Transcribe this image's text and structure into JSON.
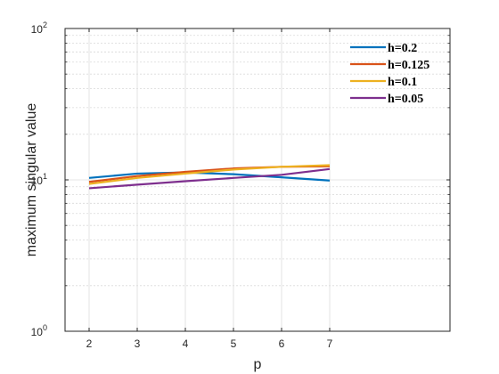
{
  "chart_data": {
    "type": "line",
    "title": "",
    "xlabel": "p",
    "ylabel": "maximum singular value",
    "x_ticks": [
      "2",
      "3",
      "4",
      "5",
      "6",
      "7"
    ],
    "y_ticks": [
      {
        "base": "10",
        "exp": "0",
        "value": 1
      },
      {
        "base": "10",
        "exp": "1",
        "value": 10
      },
      {
        "base": "10",
        "exp": "2",
        "value": 100
      }
    ],
    "xlim": [
      1.5,
      9.5
    ],
    "ylim": [
      1,
      100
    ],
    "y_scale": "log",
    "grid": true,
    "minor_grid": true,
    "legend_position": "top-right",
    "series": [
      {
        "name": "h=0.2",
        "color": "#0072BD",
        "x": [
          2,
          3,
          4,
          5,
          6,
          7
        ],
        "y": [
          10.3,
          11.0,
          11.2,
          10.9,
          10.4,
          9.9
        ]
      },
      {
        "name": "h=0.125",
        "color": "#D95319",
        "x": [
          2,
          3,
          4,
          5,
          6,
          7
        ],
        "y": [
          9.7,
          10.6,
          11.3,
          11.9,
          12.2,
          12.3
        ]
      },
      {
        "name": "h=0.1",
        "color": "#EDB120",
        "x": [
          2,
          3,
          4,
          5,
          6,
          7
        ],
        "y": [
          9.4,
          10.3,
          11.0,
          11.7,
          12.2,
          12.5
        ]
      },
      {
        "name": "h=0.05",
        "color": "#7E2F8E",
        "x": [
          2,
          3,
          4,
          5,
          6,
          7
        ],
        "y": [
          8.8,
          9.3,
          9.8,
          10.3,
          10.8,
          11.8
        ]
      }
    ]
  }
}
